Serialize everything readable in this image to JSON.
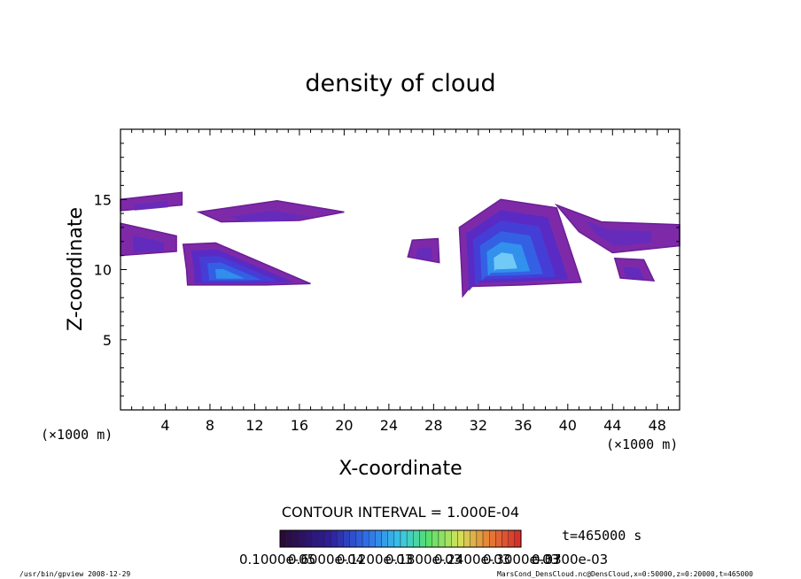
{
  "chart_data": {
    "type": "heatmap",
    "title": "density of cloud",
    "xlabel": "X-coordinate",
    "ylabel": "Z-coordinate",
    "x_unit": "(×1000 m)",
    "y_unit": "(×1000 m)",
    "xlim": [
      0,
      50
    ],
    "ylim": [
      0,
      20
    ],
    "x_ticks": [
      4,
      8,
      12,
      16,
      20,
      24,
      28,
      32,
      36,
      40,
      44,
      48
    ],
    "y_ticks": [
      5,
      10,
      15
    ],
    "contour_interval": "CONTOUR INTERVAL = 1.000E-04",
    "time_label": "t=465000 s",
    "colorbar_labels": [
      "0.1000e-05",
      "0.6000e-04",
      "0.1200e-03",
      "0.1800e-03",
      "0.2400e-03",
      "0.3000e-03",
      "0.3700e-03"
    ],
    "colorbar_tail": "e-03",
    "colors": {
      "low": "#3c0a5a",
      "mid": "#3a6fe6",
      "high": "#e6332a",
      "outer": "#7e2aa8"
    },
    "regions": [
      {
        "name": "upper-left",
        "polygon": [
          [
            0,
            15
          ],
          [
            5.5,
            15.5
          ],
          [
            5.5,
            14.6
          ],
          [
            0,
            14.2
          ]
        ],
        "level": 0.12
      },
      {
        "name": "left-band",
        "polygon": [
          [
            0,
            13.3
          ],
          [
            5,
            12.4
          ],
          [
            5,
            11.3
          ],
          [
            0,
            11
          ]
        ],
        "level": 0.2
      },
      {
        "name": "left-cell",
        "polygon": [
          [
            5.6,
            11.8
          ],
          [
            8.5,
            11.9
          ],
          [
            17,
            9
          ],
          [
            13,
            8.9
          ],
          [
            6,
            8.9
          ],
          [
            5.9,
            10
          ]
        ],
        "level": 0.7
      },
      {
        "name": "mid-high",
        "polygon": [
          [
            7,
            14.1
          ],
          [
            14,
            14.9
          ],
          [
            20,
            14.1
          ],
          [
            16,
            13.5
          ],
          [
            9,
            13.4
          ]
        ],
        "level": 0.15
      },
      {
        "name": "right-cell",
        "polygon": [
          [
            30.3,
            13
          ],
          [
            34,
            15
          ],
          [
            39,
            14.4
          ],
          [
            41.2,
            9.1
          ],
          [
            36,
            8.9
          ],
          [
            31.3,
            8.8
          ],
          [
            30.6,
            8.1
          ],
          [
            30.5,
            10
          ]
        ],
        "level": 0.85
      },
      {
        "name": "right-high",
        "polygon": [
          [
            39,
            14.6
          ],
          [
            43,
            13.4
          ],
          [
            50,
            13.2
          ],
          [
            50,
            11.7
          ],
          [
            44,
            11.2
          ],
          [
            41,
            12.7
          ]
        ],
        "level": 0.15
      },
      {
        "name": "small-right",
        "polygon": [
          [
            44.2,
            10.8
          ],
          [
            46.8,
            10.7
          ],
          [
            47.7,
            9.2
          ],
          [
            44.7,
            9.4
          ]
        ],
        "level": 0.18
      },
      {
        "name": "small-mid",
        "polygon": [
          [
            26.1,
            12.1
          ],
          [
            28.4,
            12.2
          ],
          [
            28.5,
            10.5
          ],
          [
            25.7,
            10.9
          ]
        ],
        "level": 0.15
      }
    ]
  },
  "footer": {
    "left": "/usr/bin/gpview   2008-12-29",
    "right": "MarsCond_DensCloud.nc@DensCloud,x=0:50000,z=0:20000,t=465000"
  }
}
